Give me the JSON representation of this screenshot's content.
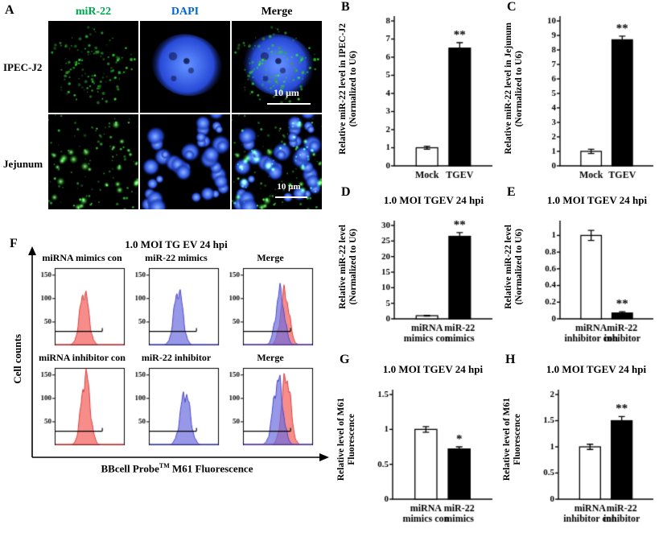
{
  "letters": {
    "A": "A",
    "B": "B",
    "C": "C",
    "D": "D",
    "E": "E",
    "F": "F",
    "G": "G",
    "H": "H"
  },
  "panelA": {
    "headers": [
      {
        "text": "miR-22",
        "color": "#00a550"
      },
      {
        "text": "DAPI",
        "color": "#0066cc"
      },
      {
        "text": "Merge",
        "color": "#000000"
      }
    ],
    "rows": [
      "IPEC-J2",
      "Jejunum"
    ],
    "scalebar1": "10 μm",
    "scalebar2": "10 μm",
    "micrographs": [
      {
        "layers": [
          {
            "type": "green-sparse",
            "seed": 101
          }
        ]
      },
      {
        "layers": [
          {
            "type": "nucleus",
            "seed": 202
          }
        ]
      },
      {
        "layers": [
          {
            "type": "nucleus",
            "seed": 202
          },
          {
            "type": "green-sparse",
            "seed": 101
          }
        ]
      },
      {
        "layers": [
          {
            "type": "green-dense",
            "seed": 404
          }
        ]
      },
      {
        "layers": [
          {
            "type": "tissue",
            "seed": 505
          }
        ]
      },
      {
        "layers": [
          {
            "type": "tissue",
            "seed": 505
          },
          {
            "type": "green-dense",
            "seed": 404
          }
        ]
      }
    ]
  },
  "panelF": {
    "title": "1.0 MOI TG EV 24 hpi",
    "ylabel": "Cell counts",
    "xlabel_pre": "BBcell Probe",
    "xlabel_sup": "TM",
    "xlabel_post": " M61 Fluorescence"
  },
  "chart_data": [
    {
      "id": "B",
      "type": "bar",
      "title": "",
      "ylabel_lines": [
        "Relative miR-22 level in IPEC-J2",
        "(Normalized to U6)"
      ],
      "categories": [
        "Mock",
        "TGEV"
      ],
      "values": [
        1.0,
        6.5
      ],
      "errors": [
        0.08,
        0.3
      ],
      "sig": [
        "",
        "**"
      ],
      "colors": [
        "#ffffff",
        "#000000"
      ],
      "ylim": [
        0,
        8
      ],
      "yticks": [
        "0",
        "1",
        "2",
        "3",
        "4",
        "5",
        "6",
        "7",
        "8"
      ]
    },
    {
      "id": "C",
      "type": "bar",
      "title": "",
      "ylabel_lines": [
        "Relative miR-22 level in Jejunum",
        "(Normalized to U6)"
      ],
      "categories": [
        "Mock",
        "TGEV"
      ],
      "values": [
        1.0,
        8.7
      ],
      "errors": [
        0.15,
        0.25
      ],
      "sig": [
        "",
        "**"
      ],
      "colors": [
        "#ffffff",
        "#000000"
      ],
      "ylim": [
        0,
        10
      ],
      "yticks": [
        "0",
        "1",
        "2",
        "3",
        "4",
        "5",
        "6",
        "7",
        "8",
        "9",
        "10"
      ]
    },
    {
      "id": "D",
      "type": "bar",
      "title": "1.0 MOI TGEV 24 hpi",
      "ylabel_lines": [
        "Relative miR-22  level",
        "(Normalized to U6)"
      ],
      "categories": [
        "miRNA\nmimics con",
        "miR-22\nmimics"
      ],
      "values": [
        1.0,
        26.5
      ],
      "errors": [
        0.15,
        1.2
      ],
      "sig": [
        "",
        "**"
      ],
      "colors": [
        "#ffffff",
        "#000000"
      ],
      "ylim": [
        0,
        30
      ],
      "yticks": [
        "0",
        "5",
        "10",
        "15",
        "20",
        "25",
        "30"
      ]
    },
    {
      "id": "E",
      "type": "bar",
      "title": "1.0 MOI TGEV 24 hpi",
      "ylabel_lines": [
        "Relative miR-22  level",
        "(Normalized to U6)"
      ],
      "categories": [
        "miRNA\ninhibitor con",
        "miR-22\ninhibitor"
      ],
      "values": [
        1.0,
        0.07
      ],
      "errors": [
        0.06,
        0.015
      ],
      "sig": [
        "",
        "**"
      ],
      "colors": [
        "#ffffff",
        "#000000"
      ],
      "ylim": [
        0,
        1.12
      ],
      "yticks": [
        "0",
        "0.2",
        "0.4",
        "0.6",
        "0.8",
        "1"
      ]
    },
    {
      "id": "G",
      "type": "bar",
      "title": "1.0 MOI TGEV 24 hpi",
      "ylabel_lines": [
        "Relative level of  M61",
        "Fluorescence"
      ],
      "categories": [
        "miRNA\nmimics con",
        "miR-22\nmimics"
      ],
      "values": [
        1.0,
        0.72
      ],
      "errors": [
        0.04,
        0.03
      ],
      "sig": [
        "",
        "*"
      ],
      "colors": [
        "#ffffff",
        "#000000"
      ],
      "ylim": [
        0,
        1.5
      ],
      "yticks": [
        "0",
        "0.5",
        "1",
        "1.5"
      ]
    },
    {
      "id": "H",
      "type": "bar",
      "title": "1.0 MOI TGEV 24 hpi",
      "ylabel_lines": [
        "Relative level of  M61",
        "Fluorescence"
      ],
      "categories": [
        "miRNA\ninhibitor con",
        "miR-22\ninhibitor"
      ],
      "values": [
        1.0,
        1.5
      ],
      "errors": [
        0.05,
        0.08
      ],
      "sig": [
        "",
        "**"
      ],
      "colors": [
        "#ffffff",
        "#000000"
      ],
      "ylim": [
        0,
        2
      ],
      "yticks": [
        "0",
        "0.5",
        "1",
        "1.5",
        "2"
      ]
    },
    {
      "id": "F1",
      "type": "histogram",
      "name": "miRNA mimics con",
      "yticks": [
        50,
        100,
        150
      ],
      "ymax": 165,
      "gate": 30,
      "curves": [
        {
          "color": "red",
          "center": 0.42,
          "width": 0.09,
          "peak": 115
        }
      ]
    },
    {
      "id": "F2",
      "type": "histogram",
      "name": "miR-22 mimics",
      "yticks": [
        50,
        100,
        150
      ],
      "ymax": 165,
      "gate": 30,
      "curves": [
        {
          "color": "blue",
          "center": 0.42,
          "width": 0.09,
          "peak": 118
        }
      ]
    },
    {
      "id": "F3",
      "type": "histogram",
      "name": "Merge",
      "yticks": [
        50,
        100,
        150
      ],
      "ymax": 165,
      "gate": 30,
      "curves": [
        {
          "color": "red",
          "center": 0.6,
          "width": 0.09,
          "peak": 112
        },
        {
          "color": "blue",
          "center": 0.53,
          "width": 0.09,
          "peak": 112
        }
      ]
    },
    {
      "id": "F4",
      "type": "histogram",
      "name": "miRNA inhibitor con",
      "yticks": [
        50,
        100,
        150
      ],
      "ymax": 165,
      "gate": 30,
      "curves": [
        {
          "color": "red",
          "center": 0.44,
          "width": 0.09,
          "peak": 148
        }
      ]
    },
    {
      "id": "F5",
      "type": "histogram",
      "name": "miR-22 inhibitor",
      "yticks": [
        50,
        100,
        150
      ],
      "ymax": 165,
      "gate": 30,
      "curves": [
        {
          "color": "blue",
          "center": 0.52,
          "width": 0.1,
          "peak": 112
        }
      ]
    },
    {
      "id": "F6",
      "type": "histogram",
      "name": "Merge",
      "yticks": [
        50,
        100,
        150
      ],
      "ymax": 165,
      "gate": 30,
      "curves": [
        {
          "color": "red",
          "center": 0.62,
          "width": 0.09,
          "peak": 148
        },
        {
          "color": "blue",
          "center": 0.5,
          "width": 0.1,
          "peak": 138
        }
      ]
    }
  ]
}
